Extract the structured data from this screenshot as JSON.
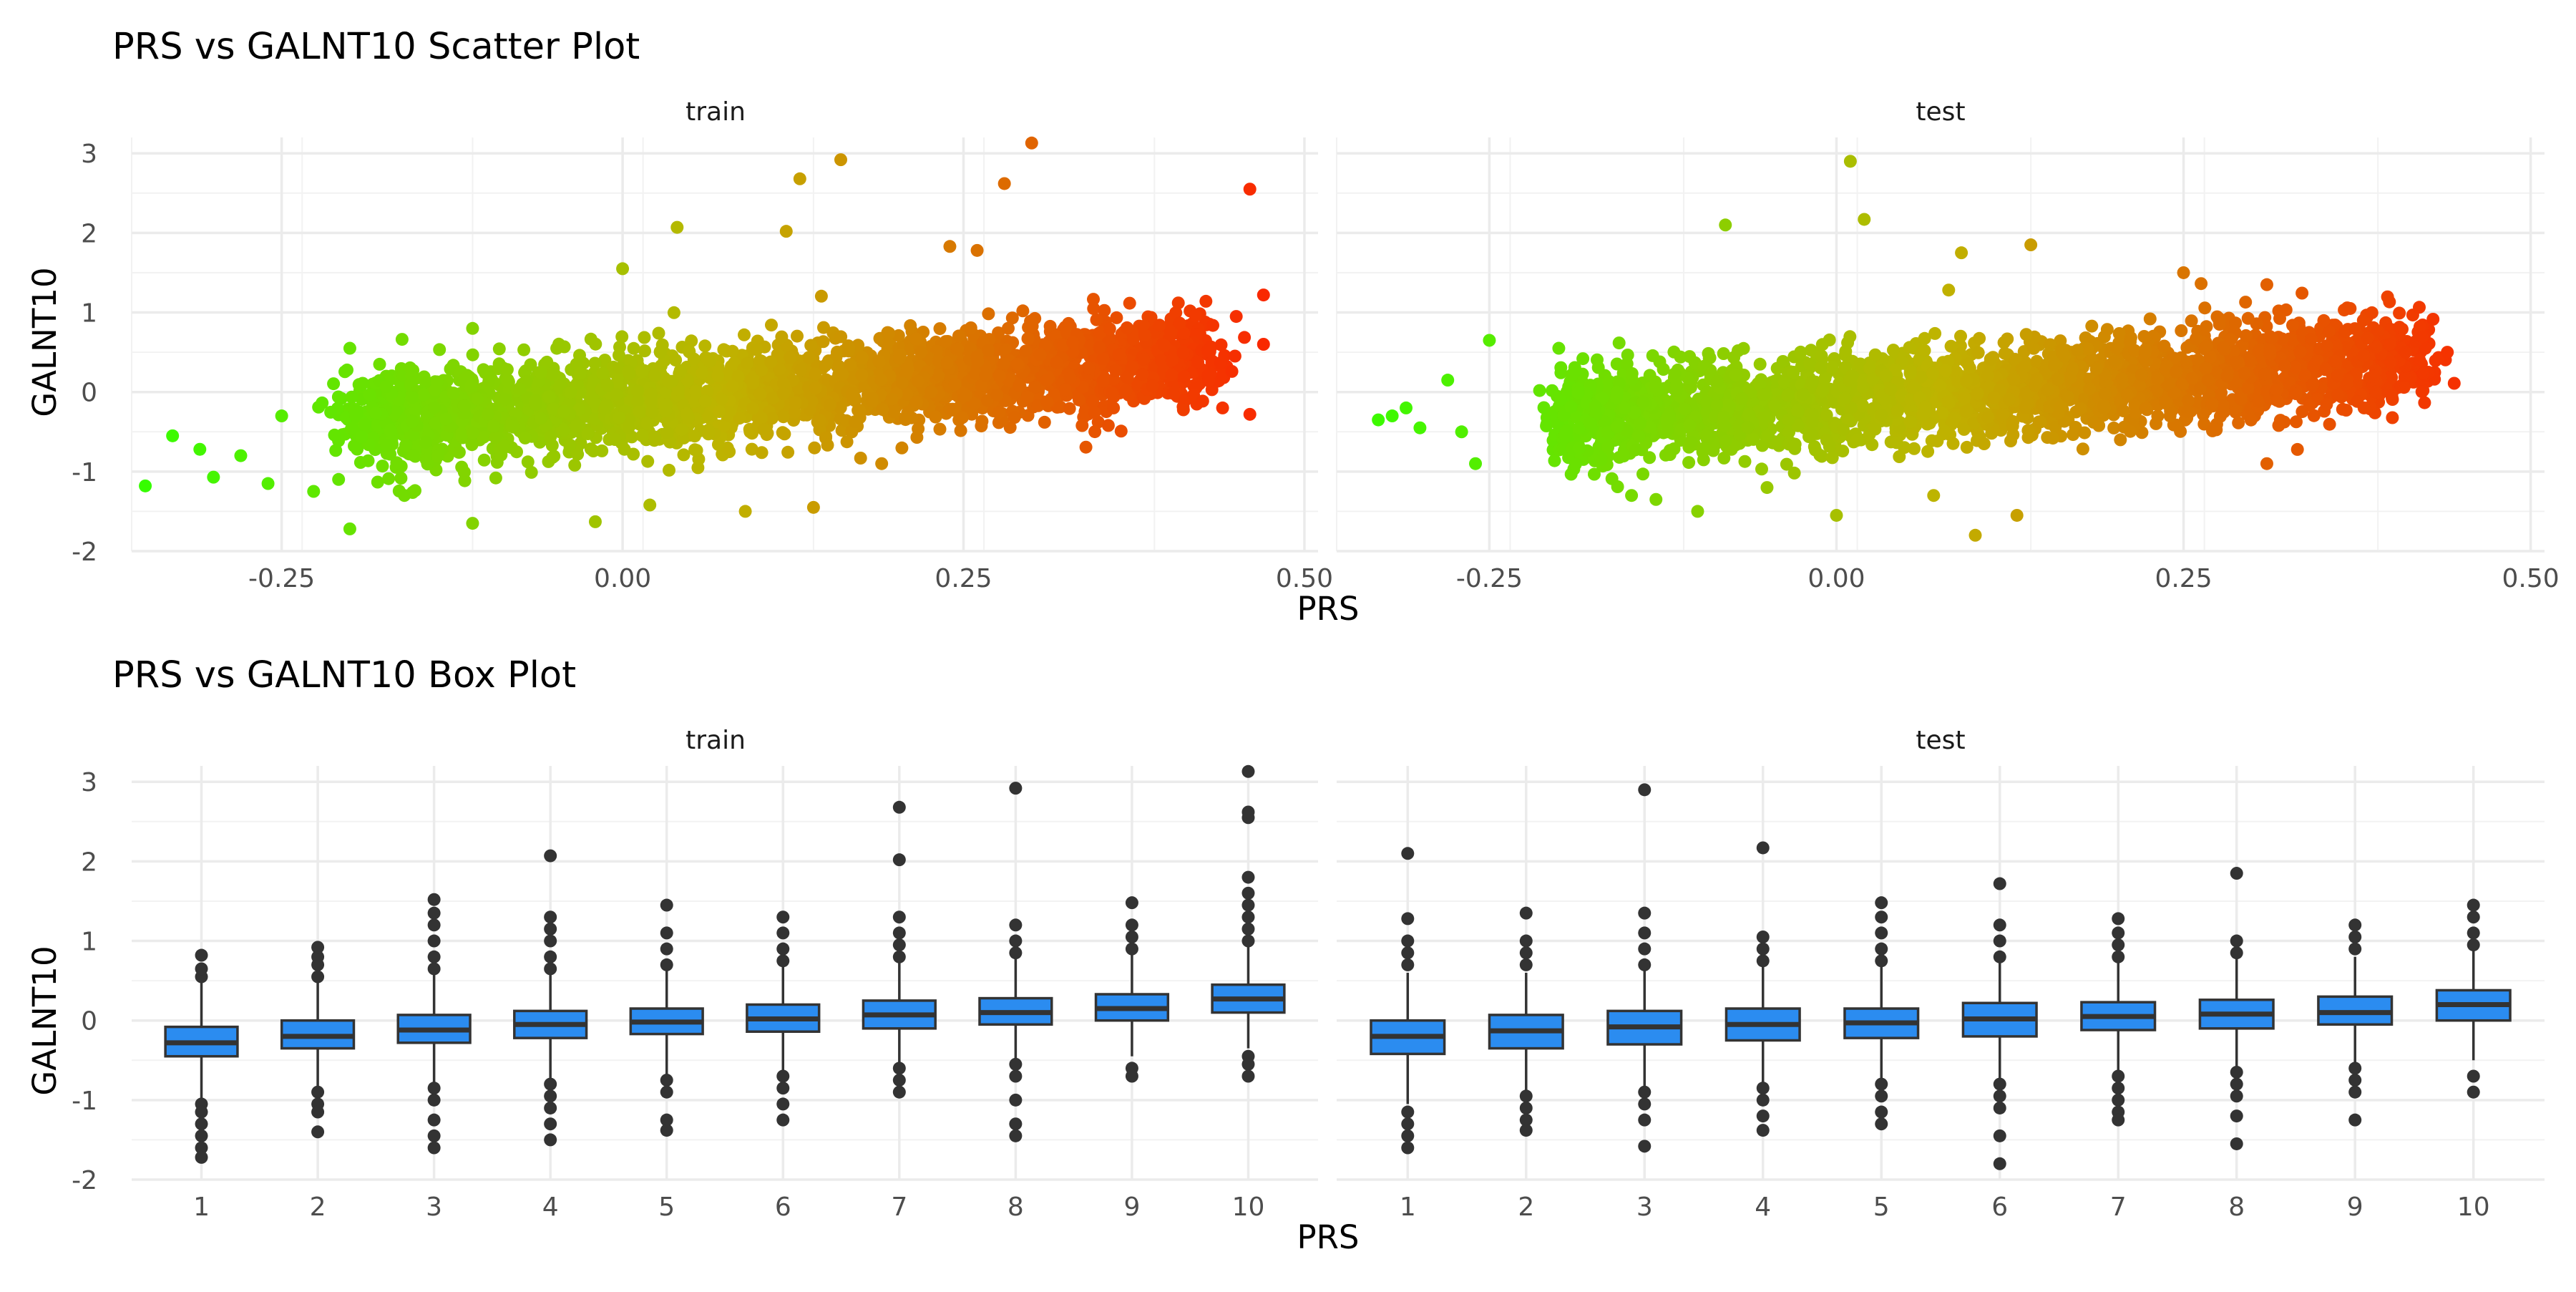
{
  "chart_data": [
    {
      "type": "scatter",
      "title": "PRS vs GALNT10 Scatter Plot",
      "xlabel": "PRS",
      "ylabel": "GALNT10",
      "xlim": [
        -0.36,
        0.51
      ],
      "ylim": [
        -2.0,
        3.2
      ],
      "x_ticks": [
        -0.25,
        0.0,
        0.25,
        0.5
      ],
      "x_tick_labels": [
        "-0.25",
        "0.00",
        "0.25",
        "0.50"
      ],
      "y_ticks": [
        -2,
        -1,
        0,
        1,
        2,
        3
      ],
      "y_tick_labels": [
        "-2",
        "-1",
        "0",
        "1",
        "2",
        "3"
      ],
      "grid": true,
      "legend": "none",
      "color_scale": {
        "low": "#33ff00",
        "mid": "#bfb300",
        "high": "#ff1a00",
        "mapped_to": "PRS"
      },
      "facets": [
        {
          "label": "train",
          "cloud": {
            "x_range": [
              -0.2,
              0.43
            ],
            "slope": 1.3,
            "intercept": -0.12,
            "sd": 0.3
          },
          "points": [
            {
              "x": -0.35,
              "y": -1.18
            },
            {
              "x": -0.33,
              "y": -0.55
            },
            {
              "x": -0.31,
              "y": -0.72
            },
            {
              "x": -0.3,
              "y": -1.07
            },
            {
              "x": -0.28,
              "y": -0.8
            },
            {
              "x": -0.26,
              "y": -1.15
            },
            {
              "x": -0.25,
              "y": -0.3
            },
            {
              "x": -0.2,
              "y": 0.55
            },
            {
              "x": -0.2,
              "y": -1.72
            },
            {
              "x": -0.16,
              "y": -1.3
            },
            {
              "x": -0.11,
              "y": 0.8
            },
            {
              "x": -0.11,
              "y": -1.65
            },
            {
              "x": -0.06,
              "y": 0.25
            },
            {
              "x": -0.02,
              "y": -1.63
            },
            {
              "x": 0.0,
              "y": 1.55
            },
            {
              "x": 0.02,
              "y": -1.42
            },
            {
              "x": 0.04,
              "y": 2.07
            },
            {
              "x": 0.09,
              "y": -1.5
            },
            {
              "x": 0.12,
              "y": 2.02
            },
            {
              "x": 0.14,
              "y": -1.45
            },
            {
              "x": 0.13,
              "y": 2.68
            },
            {
              "x": 0.16,
              "y": 2.92
            },
            {
              "x": 0.19,
              "y": -0.9
            },
            {
              "x": 0.24,
              "y": 1.83
            },
            {
              "x": 0.26,
              "y": 1.78
            },
            {
              "x": 0.28,
              "y": 2.62
            },
            {
              "x": 0.3,
              "y": 3.13
            },
            {
              "x": 0.36,
              "y": -0.2
            },
            {
              "x": 0.44,
              "y": -0.2
            },
            {
              "x": 0.45,
              "y": 0.95
            },
            {
              "x": 0.46,
              "y": 2.55
            },
            {
              "x": 0.46,
              "y": -0.28
            },
            {
              "x": 0.47,
              "y": 0.6
            },
            {
              "x": 0.47,
              "y": 1.22
            }
          ]
        },
        {
          "label": "test",
          "cloud": {
            "x_range": [
              -0.2,
              0.42
            ],
            "slope": 1.2,
            "intercept": -0.1,
            "sd": 0.3
          },
          "points": [
            {
              "x": -0.33,
              "y": -0.35
            },
            {
              "x": -0.32,
              "y": -0.3
            },
            {
              "x": -0.31,
              "y": -0.2
            },
            {
              "x": -0.3,
              "y": -0.45
            },
            {
              "x": -0.28,
              "y": 0.15
            },
            {
              "x": -0.27,
              "y": -0.5
            },
            {
              "x": -0.26,
              "y": -0.9
            },
            {
              "x": -0.25,
              "y": 0.65
            },
            {
              "x": -0.2,
              "y": 0.55
            },
            {
              "x": -0.13,
              "y": -1.35
            },
            {
              "x": -0.1,
              "y": -1.5
            },
            {
              "x": -0.08,
              "y": 2.1
            },
            {
              "x": -0.05,
              "y": -1.2
            },
            {
              "x": 0.0,
              "y": -1.55
            },
            {
              "x": 0.01,
              "y": 2.9
            },
            {
              "x": 0.02,
              "y": 2.17
            },
            {
              "x": 0.07,
              "y": -1.3
            },
            {
              "x": 0.09,
              "y": 1.75
            },
            {
              "x": 0.1,
              "y": -1.8
            },
            {
              "x": 0.13,
              "y": -1.55
            },
            {
              "x": 0.14,
              "y": 1.85
            },
            {
              "x": 0.25,
              "y": 1.5
            },
            {
              "x": 0.31,
              "y": 1.35
            },
            {
              "x": 0.31,
              "y": -0.9
            },
            {
              "x": 0.37,
              "y": 1.05
            },
            {
              "x": 0.38,
              "y": -0.2
            },
            {
              "x": 0.4,
              "y": -0.05
            },
            {
              "x": 0.41,
              "y": 0.5
            },
            {
              "x": 0.42,
              "y": 0.4
            },
            {
              "x": 0.44,
              "y": 0.5
            }
          ]
        }
      ]
    },
    {
      "type": "box",
      "title": "PRS vs GALNT10 Box Plot",
      "xlabel": "PRS",
      "ylabel": "GALNT10",
      "categories": [
        "1",
        "2",
        "3",
        "4",
        "5",
        "6",
        "7",
        "8",
        "9",
        "10"
      ],
      "ylim": [
        -2.0,
        3.2
      ],
      "y_ticks": [
        -2,
        -1,
        0,
        1,
        2,
        3
      ],
      "y_tick_labels": [
        "-2",
        "-1",
        "0",
        "1",
        "2",
        "3"
      ],
      "grid": true,
      "box_fill": "#2b8cf0",
      "facets": [
        {
          "label": "train",
          "boxes": [
            {
              "q1": -0.45,
              "median": -0.28,
              "q3": -0.08,
              "whisker_low": -1.0,
              "whisker_high": 0.5,
              "outliers": [
                -1.05,
                -1.15,
                -1.3,
                -1.45,
                -1.6,
                -1.72,
                0.55,
                0.65,
                0.82
              ]
            },
            {
              "q1": -0.35,
              "median": -0.2,
              "q3": 0.0,
              "whisker_low": -0.85,
              "whisker_high": 0.5,
              "outliers": [
                -0.9,
                -1.05,
                -1.15,
                -1.4,
                0.55,
                0.7,
                0.8,
                0.92
              ]
            },
            {
              "q1": -0.28,
              "median": -0.12,
              "q3": 0.07,
              "whisker_low": -0.8,
              "whisker_high": 0.6,
              "outliers": [
                -0.85,
                -1.0,
                -1.25,
                -1.45,
                -1.6,
                0.65,
                0.8,
                1.0,
                1.2,
                1.35,
                1.52
              ]
            },
            {
              "q1": -0.22,
              "median": -0.05,
              "q3": 0.12,
              "whisker_low": -0.75,
              "whisker_high": 0.6,
              "outliers": [
                -0.8,
                -0.95,
                -1.1,
                -1.3,
                -1.5,
                0.65,
                0.8,
                1.0,
                1.15,
                1.3,
                2.07
              ]
            },
            {
              "q1": -0.17,
              "median": -0.02,
              "q3": 0.15,
              "whisker_low": -0.7,
              "whisker_high": 0.65,
              "outliers": [
                -0.75,
                -0.9,
                -1.25,
                -1.38,
                0.7,
                0.9,
                1.1,
                1.45
              ]
            },
            {
              "q1": -0.14,
              "median": 0.02,
              "q3": 0.2,
              "whisker_low": -0.65,
              "whisker_high": 0.7,
              "outliers": [
                -0.7,
                -0.85,
                -1.05,
                -1.25,
                0.75,
                0.9,
                1.1,
                1.3
              ]
            },
            {
              "q1": -0.1,
              "median": 0.07,
              "q3": 0.25,
              "whisker_low": -0.55,
              "whisker_high": 0.75,
              "outliers": [
                -0.6,
                -0.75,
                -0.9,
                0.8,
                0.95,
                1.1,
                1.3,
                2.02,
                2.68
              ]
            },
            {
              "q1": -0.05,
              "median": 0.1,
              "q3": 0.28,
              "whisker_low": -0.5,
              "whisker_high": 0.8,
              "outliers": [
                -0.55,
                -0.7,
                -1.0,
                -1.3,
                -1.45,
                0.85,
                1.0,
                1.2,
                2.92
              ]
            },
            {
              "q1": 0.0,
              "median": 0.15,
              "q3": 0.33,
              "whisker_low": -0.45,
              "whisker_high": 0.85,
              "outliers": [
                -0.6,
                -0.7,
                0.9,
                1.05,
                1.2,
                1.48
              ]
            },
            {
              "q1": 0.1,
              "median": 0.27,
              "q3": 0.45,
              "whisker_low": -0.35,
              "whisker_high": 0.95,
              "outliers": [
                -0.45,
                -0.55,
                -0.7,
                1.0,
                1.15,
                1.3,
                1.45,
                1.6,
                1.8,
                2.55,
                2.62,
                3.13
              ]
            }
          ]
        },
        {
          "label": "test",
          "boxes": [
            {
              "q1": -0.42,
              "median": -0.2,
              "q3": 0.0,
              "whisker_low": -1.05,
              "whisker_high": 0.6,
              "outliers": [
                -1.15,
                -1.3,
                -1.45,
                -1.6,
                0.7,
                0.85,
                1.0,
                1.28,
                2.1
              ]
            },
            {
              "q1": -0.35,
              "median": -0.13,
              "q3": 0.07,
              "whisker_low": -0.9,
              "whisker_high": 0.6,
              "outliers": [
                -0.95,
                -1.1,
                -1.25,
                -1.38,
                0.7,
                0.85,
                1.0,
                1.35
              ]
            },
            {
              "q1": -0.3,
              "median": -0.08,
              "q3": 0.12,
              "whisker_low": -0.85,
              "whisker_high": 0.65,
              "outliers": [
                -0.9,
                -1.05,
                -1.25,
                -1.58,
                0.7,
                0.9,
                1.1,
                1.35,
                2.9
              ]
            },
            {
              "q1": -0.25,
              "median": -0.05,
              "q3": 0.15,
              "whisker_low": -0.8,
              "whisker_high": 0.7,
              "outliers": [
                -0.85,
                -1.0,
                -1.2,
                -1.38,
                0.75,
                0.9,
                1.05,
                2.17
              ]
            },
            {
              "q1": -0.22,
              "median": -0.03,
              "q3": 0.15,
              "whisker_low": -0.75,
              "whisker_high": 0.7,
              "outliers": [
                -0.8,
                -0.95,
                -1.15,
                -1.3,
                0.75,
                0.9,
                1.1,
                1.3,
                1.48
              ]
            },
            {
              "q1": -0.2,
              "median": 0.02,
              "q3": 0.22,
              "whisker_low": -0.75,
              "whisker_high": 0.75,
              "outliers": [
                -0.8,
                -0.95,
                -1.1,
                -1.45,
                -1.8,
                0.8,
                1.0,
                1.2,
                1.72
              ]
            },
            {
              "q1": -0.12,
              "median": 0.05,
              "q3": 0.23,
              "whisker_low": -0.65,
              "whisker_high": 0.75,
              "outliers": [
                -0.7,
                -0.85,
                -1.0,
                -1.15,
                -1.25,
                0.8,
                0.95,
                1.1,
                1.28
              ]
            },
            {
              "q1": -0.1,
              "median": 0.08,
              "q3": 0.26,
              "whisker_low": -0.6,
              "whisker_high": 0.8,
              "outliers": [
                -0.65,
                -0.8,
                -0.95,
                -1.2,
                -1.55,
                0.85,
                1.0,
                1.85
              ]
            },
            {
              "q1": -0.05,
              "median": 0.1,
              "q3": 0.3,
              "whisker_low": -0.55,
              "whisker_high": 0.8,
              "outliers": [
                -0.6,
                -0.75,
                -0.9,
                -1.25,
                0.9,
                1.05,
                1.2
              ]
            },
            {
              "q1": 0.0,
              "median": 0.2,
              "q3": 0.38,
              "whisker_low": -0.5,
              "whisker_high": 0.9,
              "outliers": [
                -0.7,
                -0.9,
                0.95,
                1.1,
                1.3,
                1.45
              ]
            }
          ]
        }
      ]
    }
  ]
}
